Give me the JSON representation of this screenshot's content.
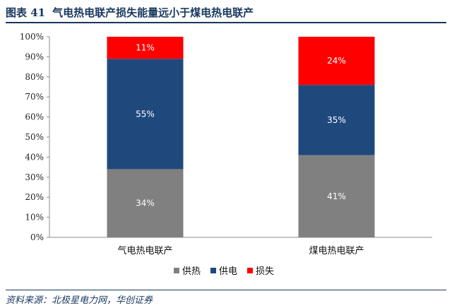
{
  "header": {
    "figure_number": "图表 41",
    "title": "气电热电联产损失能量远小于煤电热电联产"
  },
  "footer": {
    "source": "资料来源：北极星电力网，华创证券"
  },
  "colors": {
    "供热": "#808080",
    "供电": "#1f497d",
    "损失": "#ff0000",
    "title": "#17375e"
  },
  "chart_data": {
    "type": "bar",
    "stacked": true,
    "categories": [
      "气电热电联产",
      "煤电热电联产"
    ],
    "series": [
      {
        "name": "供热",
        "values": [
          34,
          41
        ],
        "labels": [
          "34%",
          "41%"
        ]
      },
      {
        "name": "供电",
        "values": [
          55,
          35
        ],
        "labels": [
          "55%",
          "35%"
        ]
      },
      {
        "name": "损失",
        "values": [
          11,
          24
        ],
        "labels": [
          "11%",
          "24%"
        ]
      }
    ],
    "title": "",
    "xlabel": "",
    "ylabel": "",
    "ylim": [
      0,
      100
    ],
    "yticks": [
      "0%",
      "10%",
      "20%",
      "30%",
      "40%",
      "50%",
      "60%",
      "70%",
      "80%",
      "90%",
      "100%"
    ],
    "grid": false,
    "legend_position": "bottom"
  }
}
